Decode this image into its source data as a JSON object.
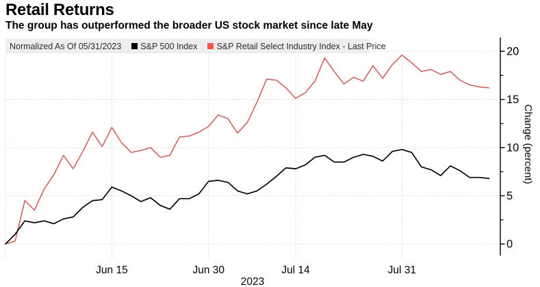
{
  "header": {
    "title": "Retail Returns",
    "subtitle": "The group has outperformed the broader US stock market since late May"
  },
  "legend": {
    "note": "Normalized As Of 05/31/2023",
    "series": [
      {
        "label": "S&P 500 Index",
        "color": "#000000"
      },
      {
        "label": "S&P Retail Select Industry Index - Last Price",
        "color": "#f25753"
      }
    ]
  },
  "chart_data": {
    "type": "line",
    "title": "Retail Returns",
    "subtitle": "The group has outperformed the broader US stock market since late May",
    "note": "Normalized As Of 05/31/2023",
    "xlabel": "",
    "ylabel": "Change (percent)",
    "x_year_label": "2023",
    "ylim": [
      -1.3,
      21.4
    ],
    "yticks": [
      0,
      5,
      10,
      15,
      20
    ],
    "y_minor_ticks": [
      2.5,
      7.5,
      12.5,
      17.5
    ],
    "grid": "dotted",
    "legend_position": "top",
    "x_unit": "trading days, normalized to 0 at 05/31/2023",
    "dates": [
      "05/31",
      "06/01",
      "06/02",
      "06/05",
      "06/06",
      "06/07",
      "06/08",
      "06/09",
      "06/12",
      "06/13",
      "06/14",
      "06/15",
      "06/16",
      "06/20",
      "06/21",
      "06/22",
      "06/23",
      "06/26",
      "06/27",
      "06/28",
      "06/29",
      "06/30",
      "07/03",
      "07/05",
      "07/06",
      "07/07",
      "07/10",
      "07/11",
      "07/12",
      "07/13",
      "07/14",
      "07/17",
      "07/18",
      "07/19",
      "07/20",
      "07/21",
      "07/24",
      "07/25",
      "07/26",
      "07/27",
      "07/28",
      "07/31",
      "08/01",
      "08/02",
      "08/03",
      "08/04",
      "08/07",
      "08/08",
      "08/09",
      "08/10",
      "08/11"
    ],
    "xticks": [
      {
        "day": 0,
        "label": ""
      },
      {
        "day": 11,
        "label": "Jun 15"
      },
      {
        "day": 21,
        "label": "Jun 30"
      },
      {
        "day": 30,
        "label": "Jul 14"
      },
      {
        "day": 41,
        "label": "Jul 31"
      }
    ],
    "series": [
      {
        "name": "S&P 500 Index",
        "color": "#000000",
        "width": 1.7,
        "values": [
          0.0,
          1.0,
          2.4,
          2.2,
          2.4,
          2.1,
          2.6,
          2.8,
          3.8,
          4.5,
          4.6,
          5.9,
          5.5,
          5.0,
          4.4,
          4.8,
          4.0,
          3.6,
          4.7,
          4.7,
          5.2,
          6.5,
          6.6,
          6.4,
          5.5,
          5.2,
          5.5,
          6.2,
          7.0,
          7.9,
          7.8,
          8.2,
          9.0,
          9.2,
          8.5,
          8.5,
          9.0,
          9.3,
          9.1,
          8.6,
          9.6,
          9.8,
          9.5,
          8.0,
          7.7,
          7.1,
          8.1,
          7.6,
          6.9,
          6.9,
          6.8
        ]
      },
      {
        "name": "S&P Retail Select Industry Index - Last Price",
        "color": "#cd6460",
        "width": 1.6,
        "values": [
          0.0,
          0.3,
          4.5,
          3.5,
          5.7,
          7.2,
          9.2,
          7.8,
          9.6,
          11.6,
          10.1,
          12.1,
          10.5,
          9.5,
          9.7,
          10.0,
          9.0,
          9.2,
          11.1,
          11.2,
          11.6,
          12.2,
          13.4,
          13.0,
          11.5,
          12.6,
          14.7,
          17.1,
          17.0,
          16.2,
          15.1,
          15.7,
          16.9,
          19.3,
          17.9,
          16.6,
          17.3,
          16.9,
          18.5,
          17.2,
          18.6,
          19.6,
          18.8,
          17.9,
          18.1,
          17.6,
          17.9,
          17.0,
          16.5,
          16.3,
          16.2
        ]
      }
    ]
  }
}
